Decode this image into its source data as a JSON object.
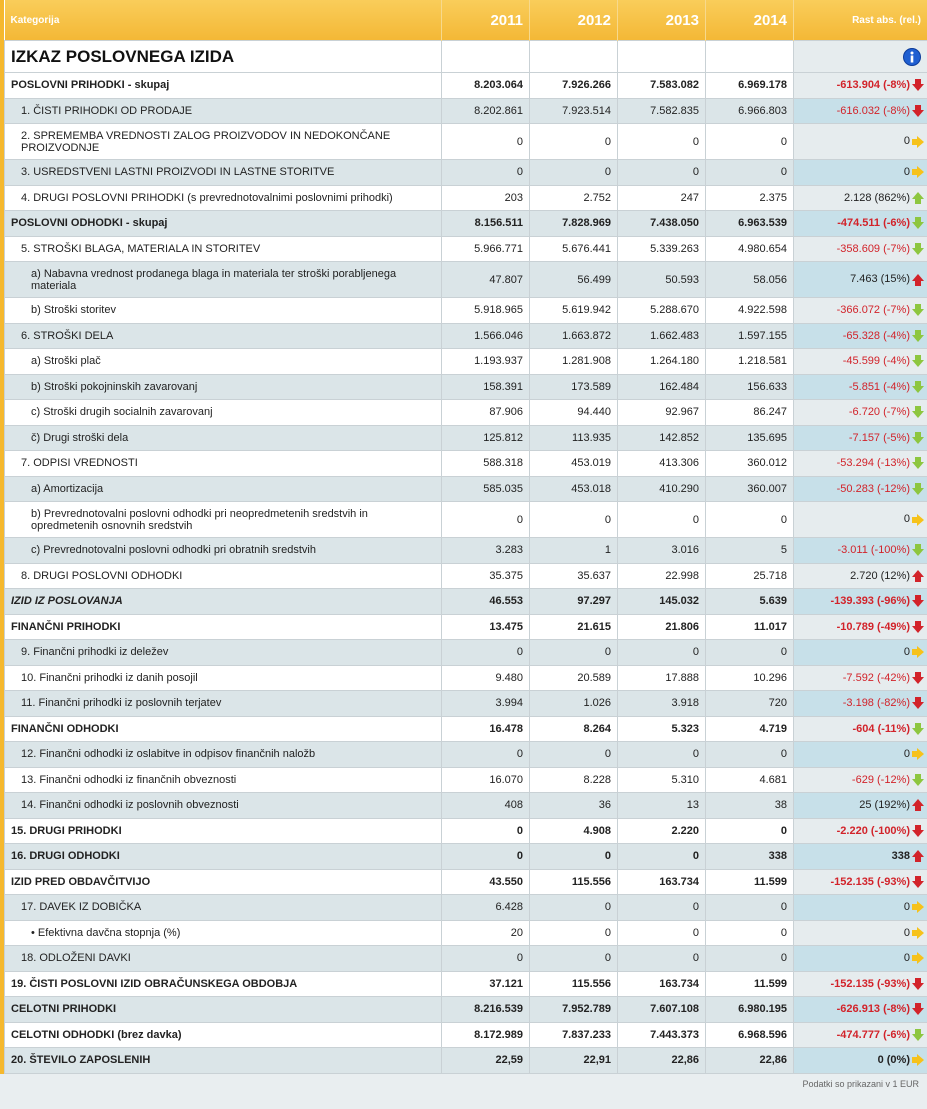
{
  "table": {
    "header": [
      "Kategorija",
      "2011",
      "2012",
      "2013",
      "2014",
      "Rast abs. (rel.)"
    ],
    "section_title": "IZKAZ POSLOVNEGA IZIDA",
    "rows": [
      {
        "label": "POSLOVNI PRIHODKI - skupaj",
        "values": [
          "8.203.064",
          "7.926.266",
          "7.583.082",
          "6.969.178"
        ],
        "change": "-613.904 (-8%)",
        "arrow": "red-down",
        "bold": true
      },
      {
        "label": "1. ČISTI PRIHODKI OD PRODAJE",
        "values": [
          "8.202.861",
          "7.923.514",
          "7.582.835",
          "6.966.803"
        ],
        "change": "-616.032 (-8%)",
        "arrow": "red-down"
      },
      {
        "label": "2. SPREMEMBA VREDNOSTI ZALOG PROIZVODOV IN NEDOKONČANE PROIZVODNJE",
        "values": [
          "0",
          "0",
          "0",
          "0"
        ],
        "change": "0",
        "arrow": "yellow-right",
        "tall": true
      },
      {
        "label": "3. USREDSTVENI LASTNI PROIZVODI IN LASTNE STORITVE",
        "values": [
          "0",
          "0",
          "0",
          "0"
        ],
        "change": "0",
        "arrow": "yellow-right"
      },
      {
        "label": "4. DRUGI POSLOVNI PRIHODKI (s prevrednotovalnimi poslovnimi prihodki)",
        "values": [
          "203",
          "2.752",
          "247",
          "2.375"
        ],
        "change": "2.128 (862%)",
        "arrow": "green-up"
      },
      {
        "label": "POSLOVNI ODHODKI - skupaj",
        "values": [
          "8.156.511",
          "7.828.969",
          "7.438.050",
          "6.963.539"
        ],
        "change": "-474.511 (-6%)",
        "arrow": "green-down",
        "bold": true
      },
      {
        "label": "5. STROŠKI BLAGA, MATERIALA IN STORITEV",
        "values": [
          "5.966.771",
          "5.676.441",
          "5.339.263",
          "4.980.654"
        ],
        "change": "-358.609 (-7%)",
        "arrow": "green-down"
      },
      {
        "label": "a) Nabavna vrednost prodanega blaga in materiala ter stroški porabljenega materiala",
        "values": [
          "47.807",
          "56.499",
          "50.593",
          "58.056"
        ],
        "change": "7.463 (15%)",
        "arrow": "red-up",
        "tall": true
      },
      {
        "label": "b) Stroški storitev",
        "values": [
          "5.918.965",
          "5.619.942",
          "5.288.670",
          "4.922.598"
        ],
        "change": "-366.072 (-7%)",
        "arrow": "green-down"
      },
      {
        "label": "6. STROŠKI DELA",
        "values": [
          "1.566.046",
          "1.663.872",
          "1.662.483",
          "1.597.155"
        ],
        "change": "-65.328 (-4%)",
        "arrow": "green-down"
      },
      {
        "label": "a) Stroški plač",
        "values": [
          "1.193.937",
          "1.281.908",
          "1.264.180",
          "1.218.581"
        ],
        "change": "-45.599 (-4%)",
        "arrow": "green-down"
      },
      {
        "label": "b) Stroški pokojninskih zavarovanj",
        "values": [
          "158.391",
          "173.589",
          "162.484",
          "156.633"
        ],
        "change": "-5.851 (-4%)",
        "arrow": "green-down"
      },
      {
        "label": "c) Stroški drugih socialnih zavarovanj",
        "values": [
          "87.906",
          "94.440",
          "92.967",
          "86.247"
        ],
        "change": "-6.720 (-7%)",
        "arrow": "green-down"
      },
      {
        "label": "č) Drugi stroški dela",
        "values": [
          "125.812",
          "113.935",
          "142.852",
          "135.695"
        ],
        "change": "-7.157 (-5%)",
        "arrow": "green-down"
      },
      {
        "label": "7. ODPISI VREDNOSTI",
        "values": [
          "588.318",
          "453.019",
          "413.306",
          "360.012"
        ],
        "change": "-53.294 (-13%)",
        "arrow": "green-down"
      },
      {
        "label": "a) Amortizacija",
        "values": [
          "585.035",
          "453.018",
          "410.290",
          "360.007"
        ],
        "change": "-50.283 (-12%)",
        "arrow": "green-down"
      },
      {
        "label": "b) Prevrednotovalni poslovni odhodki pri neopredmetenih sredstvih in opredmetenih osnovnih sredstvih",
        "values": [
          "0",
          "0",
          "0",
          "0"
        ],
        "change": "0",
        "arrow": "yellow-right",
        "tall": true
      },
      {
        "label": "c) Prevrednotovalni poslovni odhodki pri obratnih sredstvih",
        "values": [
          "3.283",
          "1",
          "3.016",
          "5"
        ],
        "change": "-3.011 (-100%)",
        "arrow": "green-down"
      },
      {
        "label": "8. DRUGI POSLOVNI ODHODKI",
        "values": [
          "35.375",
          "35.637",
          "22.998",
          "25.718"
        ],
        "change": "2.720 (12%)",
        "arrow": "red-up"
      },
      {
        "label": "IZID IZ POSLOVANJA",
        "values": [
          "46.553",
          "97.297",
          "145.032",
          "5.639"
        ],
        "change": "-139.393 (-96%)",
        "arrow": "red-down",
        "bold": true,
        "italic": true
      },
      {
        "label": "FINANČNI PRIHODKI",
        "values": [
          "13.475",
          "21.615",
          "21.806",
          "11.017"
        ],
        "change": "-10.789 (-49%)",
        "arrow": "red-down",
        "bold": true
      },
      {
        "label": "9. Finančni prihodki iz deležev",
        "values": [
          "0",
          "0",
          "0",
          "0"
        ],
        "change": "0",
        "arrow": "yellow-right"
      },
      {
        "label": "10. Finančni prihodki iz danih posojil",
        "values": [
          "9.480",
          "20.589",
          "17.888",
          "10.296"
        ],
        "change": "-7.592 (-42%)",
        "arrow": "red-down"
      },
      {
        "label": "11. Finančni prihodki iz poslovnih terjatev",
        "values": [
          "3.994",
          "1.026",
          "3.918",
          "720"
        ],
        "change": "-3.198 (-82%)",
        "arrow": "red-down"
      },
      {
        "label": "FINANČNI ODHODKI",
        "values": [
          "16.478",
          "8.264",
          "5.323",
          "4.719"
        ],
        "change": "-604 (-11%)",
        "arrow": "green-down",
        "bold": true
      },
      {
        "label": "12. Finančni odhodki iz oslabitve in odpisov finančnih naložb",
        "values": [
          "0",
          "0",
          "0",
          "0"
        ],
        "change": "0",
        "arrow": "yellow-right"
      },
      {
        "label": "13. Finančni odhodki iz finančnih obveznosti",
        "values": [
          "16.070",
          "8.228",
          "5.310",
          "4.681"
        ],
        "change": "-629 (-12%)",
        "arrow": "green-down"
      },
      {
        "label": "14. Finančni odhodki iz poslovnih obveznosti",
        "values": [
          "408",
          "36",
          "13",
          "38"
        ],
        "change": "25 (192%)",
        "arrow": "red-up"
      },
      {
        "label": "15. DRUGI PRIHODKI",
        "values": [
          "0",
          "4.908",
          "2.220",
          "0"
        ],
        "change": "-2.220 (-100%)",
        "arrow": "red-down",
        "bold": true
      },
      {
        "label": "16. DRUGI ODHODKI",
        "values": [
          "0",
          "0",
          "0",
          "338"
        ],
        "change": "338",
        "arrow": "red-up",
        "bold": true
      },
      {
        "label": "IZID PRED OBDAVČITVIJO",
        "values": [
          "43.550",
          "115.556",
          "163.734",
          "11.599"
        ],
        "change": "-152.135 (-93%)",
        "arrow": "red-down",
        "bold": true
      },
      {
        "label": "17. DAVEK IZ DOBIČKA",
        "values": [
          "6.428",
          "0",
          "0",
          "0"
        ],
        "change": "0",
        "arrow": "yellow-right"
      },
      {
        "label": "• Efektivna davčna stopnja (%)",
        "values": [
          "20",
          "0",
          "0",
          "0"
        ],
        "change": "0",
        "arrow": "yellow-right"
      },
      {
        "label": "18. ODLOŽENI DAVKI",
        "values": [
          "0",
          "0",
          "0",
          "0"
        ],
        "change": "0",
        "arrow": "yellow-right"
      },
      {
        "label": "19. ČISTI POSLOVNI IZID OBRAČUNSKEGA OBDOBJA",
        "values": [
          "37.121",
          "115.556",
          "163.734",
          "11.599"
        ],
        "change": "-152.135 (-93%)",
        "arrow": "red-down",
        "bold": true
      },
      {
        "label": "CELOTNI PRIHODKI",
        "values": [
          "8.216.539",
          "7.952.789",
          "7.607.108",
          "6.980.195"
        ],
        "change": "-626.913 (-8%)",
        "arrow": "red-down",
        "bold": true
      },
      {
        "label": "CELOTNI ODHODKI (brez davka)",
        "values": [
          "8.172.989",
          "7.837.233",
          "7.443.373",
          "6.968.596"
        ],
        "change": "-474.777 (-6%)",
        "arrow": "green-down",
        "bold": true
      },
      {
        "label": "20. ŠTEVILO ZAPOSLENIH",
        "values": [
          "22,59",
          "22,91",
          "22,86",
          "22,86"
        ],
        "change": "0 (0%)",
        "arrow": "yellow-right",
        "bold": true
      }
    ]
  },
  "footnote": "Podatki so prikazani v 1 EUR"
}
